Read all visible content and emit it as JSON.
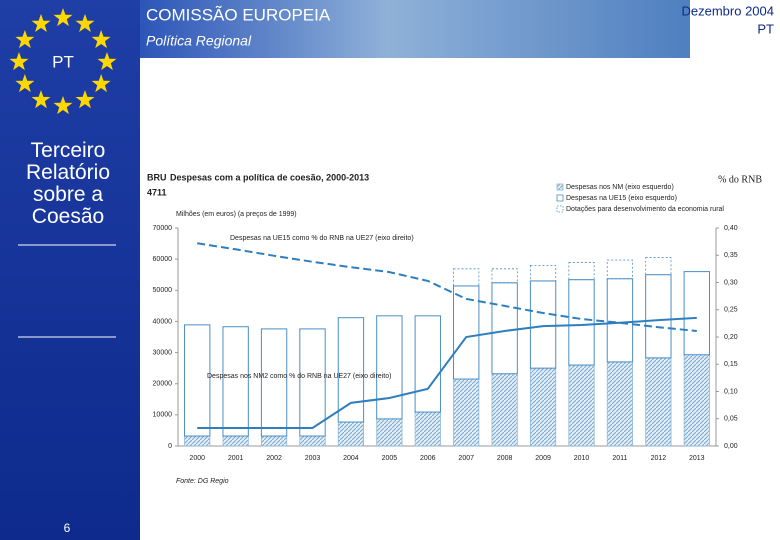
{
  "header": {
    "organization": "COMISSÃO EUROPEIA",
    "department": "Política Regional",
    "date": "Dezembro 2004",
    "language": "PT"
  },
  "sidebar": {
    "country": "PT",
    "report_title": "Terceiro Relatório sobre a Coesão",
    "page_number": "6"
  },
  "chart_data": {
    "type": "bar",
    "code": [
      "BRU",
      "4711"
    ],
    "title": "Despesas com a política de coesão, 2000-2013",
    "y_label": "Milhões (em euros) (a preços de 1999)",
    "y2_label": "% do RNB",
    "source": "Fonte: DG Regio",
    "categories": [
      "2000",
      "2001",
      "2002",
      "2003",
      "2004",
      "2005",
      "2006",
      "2007",
      "2008",
      "2009",
      "2010",
      "2011",
      "2012",
      "2013"
    ],
    "series": [
      {
        "name": "Despesas nos NM (eixo esquerdo)",
        "type": "bar",
        "pattern": "hatched",
        "color": "#8fb8d8",
        "values": [
          3200,
          3200,
          3200,
          3200,
          7700,
          8700,
          10900,
          21500,
          23200,
          25000,
          26000,
          27000,
          28300,
          29300
        ]
      },
      {
        "name": "Despesas na UE15 (eixo esquerdo)",
        "type": "bar",
        "pattern": "solid",
        "color": "#4a8ec4",
        "values": [
          35700,
          35100,
          34400,
          34400,
          33500,
          33100,
          30900,
          29900,
          29200,
          28000,
          27400,
          26700,
          26700,
          26700
        ]
      },
      {
        "name": "Dotações para desenvolvimento da economia rural",
        "type": "bar",
        "pattern": "dashed-outline",
        "color": "#4a8ec4",
        "values": [
          null,
          null,
          null,
          null,
          null,
          null,
          null,
          5500,
          4500,
          5000,
          5500,
          6000,
          5500,
          null
        ]
      },
      {
        "name": "Despesas na UE15 como % do RNB na UE27 (eixo direito)",
        "type": "line",
        "axis": "y2",
        "style": "dashed",
        "color": "#2f7fbf",
        "values": [
          0.372,
          0.361,
          0.349,
          0.338,
          0.328,
          0.319,
          0.303,
          0.27,
          0.257,
          0.244,
          0.233,
          0.226,
          0.218,
          0.211
        ]
      },
      {
        "name": "Despesas nos NM2 como % do RNB na UE27 (eixo direito)",
        "type": "line",
        "axis": "y2",
        "style": "solid",
        "color": "#2f7fbf",
        "values": [
          0.033,
          0.033,
          0.033,
          0.033,
          0.079,
          0.088,
          0.105,
          0.2,
          0.211,
          0.22,
          0.222,
          0.226,
          0.231,
          0.235
        ]
      }
    ],
    "ylim": [
      0,
      70000
    ],
    "yticks": [
      0,
      10000,
      20000,
      30000,
      40000,
      50000,
      60000,
      70000
    ],
    "y2lim": [
      0,
      0.4
    ],
    "y2ticks": [
      {
        "value": 0,
        "label": "0,00"
      },
      {
        "value": 0.05,
        "label": "0,05"
      },
      {
        "value": 0.1,
        "label": "0,10"
      },
      {
        "value": 0.15,
        "label": "0,15"
      },
      {
        "value": 0.2,
        "label": "0,20"
      },
      {
        "value": 0.25,
        "label": "0,25"
      },
      {
        "value": 0.3,
        "label": "0,30"
      },
      {
        "value": 0.35,
        "label": "0,35"
      },
      {
        "value": 0.4,
        "label": "0,40"
      }
    ],
    "legend": "top-right",
    "grid": false
  }
}
